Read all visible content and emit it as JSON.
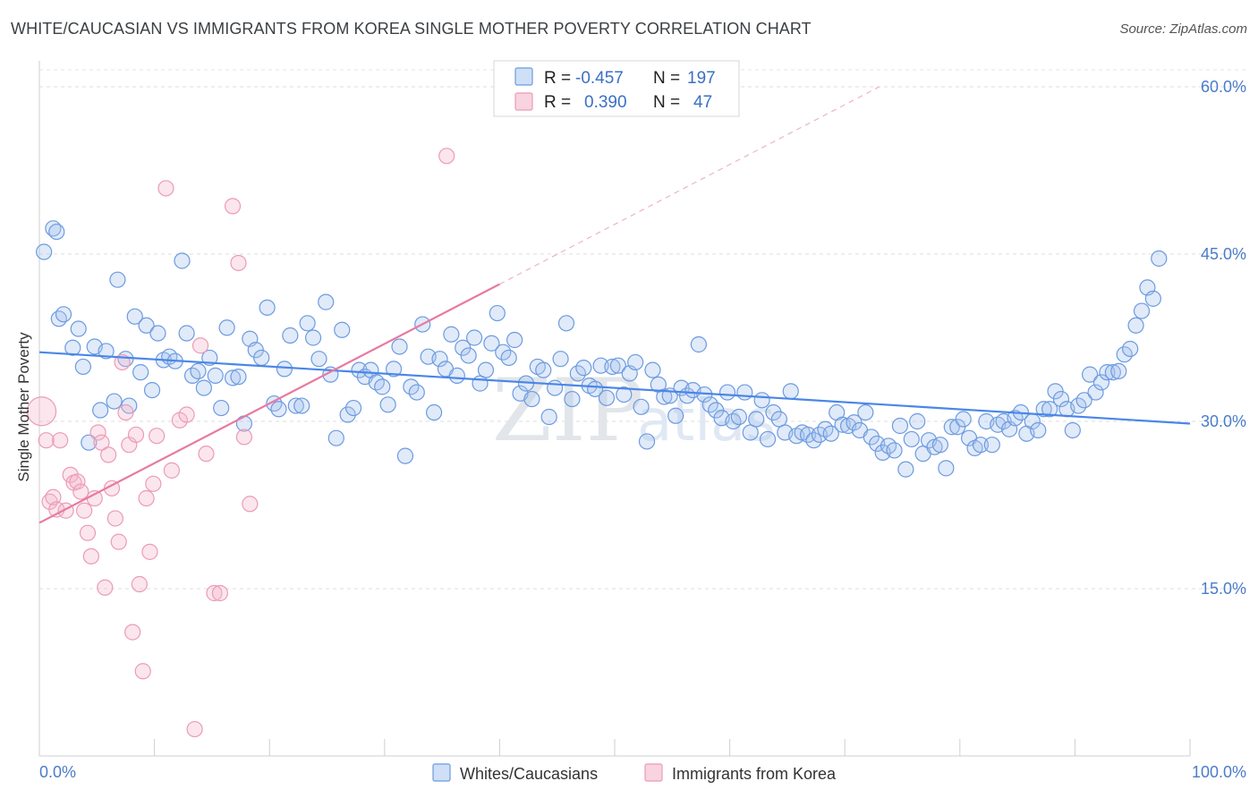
{
  "title": "WHITE/CAUCASIAN VS IMMIGRANTS FROM KOREA SINGLE MOTHER POVERTY CORRELATION CHART",
  "source": "Source: ZipAtlas.com",
  "watermark": {
    "zip": "ZIP",
    "atlas": "atlas"
  },
  "colors": {
    "blue": "#4a86e8",
    "blue_fill": "rgba(165,196,238,0.35)",
    "blue_stroke": "#6c9be0",
    "pink": "#e87aa0",
    "pink_fill": "rgba(244,182,203,0.35)",
    "pink_stroke": "#ec9bb6",
    "tick_label": "#4a7cc9"
  },
  "legend": {
    "rows": [
      {
        "r_label": "R =",
        "r_value": "-0.457",
        "n_label": "N =",
        "n_value": "197"
      },
      {
        "r_label": "R =",
        "r_value": "0.390",
        "n_label": "N =",
        "n_value": "47"
      }
    ]
  },
  "bottom_legend": [
    "Whites/Caucasians",
    "Immigrants from Korea"
  ],
  "chart_data": {
    "type": "scatter",
    "ylabel": "Single Mother Poverty",
    "xlabel": "",
    "xlim": [
      0,
      100
    ],
    "ylim": [
      0,
      60
    ],
    "x_tick_labels": [
      "0.0%",
      "100.0%"
    ],
    "y_ticks": [
      15,
      30,
      45,
      60
    ],
    "y_tick_labels": [
      "15.0%",
      "30.0%",
      "45.0%",
      "60.0%"
    ],
    "grid": "horizontal dashed",
    "series": [
      {
        "name": "Whites/Caucasians",
        "trend": {
          "x0": 0,
          "y0": 36.2,
          "x1": 100,
          "y1": 29.8
        },
        "points": [
          [
            0.4,
            45.2
          ],
          [
            1.2,
            47.3
          ],
          [
            1.5,
            47.0
          ],
          [
            1.7,
            39.2
          ],
          [
            2.1,
            39.6
          ],
          [
            2.9,
            36.6
          ],
          [
            3.4,
            38.3
          ],
          [
            3.8,
            34.9
          ],
          [
            4.3,
            28.1
          ],
          [
            4.8,
            36.7
          ],
          [
            5.3,
            31.0
          ],
          [
            5.8,
            36.3
          ],
          [
            6.5,
            31.8
          ],
          [
            6.8,
            42.7
          ],
          [
            7.5,
            35.6
          ],
          [
            7.8,
            31.4
          ],
          [
            8.3,
            39.4
          ],
          [
            8.8,
            34.4
          ],
          [
            9.3,
            38.6
          ],
          [
            9.8,
            32.8
          ],
          [
            10.3,
            37.9
          ],
          [
            10.8,
            35.5
          ],
          [
            11.3,
            35.8
          ],
          [
            11.8,
            35.4
          ],
          [
            12.4,
            44.4
          ],
          [
            12.8,
            37.9
          ],
          [
            13.3,
            34.1
          ],
          [
            13.8,
            34.5
          ],
          [
            14.3,
            33.0
          ],
          [
            14.8,
            35.7
          ],
          [
            15.3,
            34.1
          ],
          [
            15.8,
            31.2
          ],
          [
            16.3,
            38.4
          ],
          [
            16.8,
            33.9
          ],
          [
            17.3,
            34.0
          ],
          [
            17.8,
            29.8
          ],
          [
            18.3,
            37.4
          ],
          [
            18.8,
            36.4
          ],
          [
            19.3,
            35.7
          ],
          [
            19.8,
            40.2
          ],
          [
            20.4,
            31.6
          ],
          [
            20.8,
            31.1
          ],
          [
            21.3,
            34.7
          ],
          [
            21.8,
            37.7
          ],
          [
            22.3,
            31.4
          ],
          [
            22.8,
            31.4
          ],
          [
            23.3,
            38.8
          ],
          [
            23.8,
            37.5
          ],
          [
            24.3,
            35.6
          ],
          [
            24.9,
            40.7
          ],
          [
            25.3,
            34.2
          ],
          [
            25.8,
            28.5
          ],
          [
            26.3,
            38.2
          ],
          [
            26.8,
            30.6
          ],
          [
            27.3,
            31.2
          ],
          [
            27.8,
            34.6
          ],
          [
            28.3,
            34.0
          ],
          [
            28.8,
            34.6
          ],
          [
            29.3,
            33.5
          ],
          [
            29.8,
            33.1
          ],
          [
            30.3,
            31.5
          ],
          [
            30.8,
            34.7
          ],
          [
            31.3,
            36.7
          ],
          [
            31.8,
            26.9
          ],
          [
            32.3,
            33.1
          ],
          [
            32.8,
            32.6
          ],
          [
            33.3,
            38.7
          ],
          [
            33.8,
            35.8
          ],
          [
            34.3,
            30.8
          ],
          [
            34.8,
            35.6
          ],
          [
            35.3,
            34.7
          ],
          [
            35.8,
            37.8
          ],
          [
            36.3,
            34.1
          ],
          [
            36.8,
            36.6
          ],
          [
            37.3,
            35.9
          ],
          [
            37.8,
            37.5
          ],
          [
            38.3,
            33.4
          ],
          [
            38.8,
            34.6
          ],
          [
            39.3,
            37.0
          ],
          [
            39.8,
            39.7
          ],
          [
            40.3,
            36.2
          ],
          [
            40.8,
            35.7
          ],
          [
            41.3,
            37.3
          ],
          [
            41.8,
            32.5
          ],
          [
            42.3,
            33.4
          ],
          [
            42.8,
            32.0
          ],
          [
            43.3,
            34.9
          ],
          [
            43.8,
            34.6
          ],
          [
            44.3,
            30.4
          ],
          [
            44.8,
            33.0
          ],
          [
            45.3,
            35.6
          ],
          [
            45.8,
            38.8
          ],
          [
            46.3,
            32.0
          ],
          [
            46.8,
            34.3
          ],
          [
            47.3,
            34.8
          ],
          [
            47.8,
            33.2
          ],
          [
            48.3,
            32.9
          ],
          [
            48.8,
            35.0
          ],
          [
            49.3,
            32.1
          ],
          [
            49.8,
            34.9
          ],
          [
            50.3,
            35.0
          ],
          [
            50.8,
            32.4
          ],
          [
            51.3,
            34.3
          ],
          [
            51.8,
            35.3
          ],
          [
            52.3,
            31.3
          ],
          [
            52.8,
            28.2
          ],
          [
            53.3,
            34.6
          ],
          [
            53.8,
            33.3
          ],
          [
            54.3,
            32.2
          ],
          [
            54.8,
            32.3
          ],
          [
            55.3,
            30.5
          ],
          [
            55.8,
            33.0
          ],
          [
            56.3,
            32.3
          ],
          [
            56.8,
            32.8
          ],
          [
            57.3,
            36.9
          ],
          [
            57.8,
            32.4
          ],
          [
            58.3,
            31.5
          ],
          [
            58.8,
            31.0
          ],
          [
            59.3,
            30.3
          ],
          [
            59.8,
            32.6
          ],
          [
            60.3,
            30.0
          ],
          [
            60.8,
            30.4
          ],
          [
            61.3,
            32.6
          ],
          [
            61.8,
            29.0
          ],
          [
            62.3,
            30.2
          ],
          [
            62.8,
            31.9
          ],
          [
            63.3,
            28.4
          ],
          [
            63.8,
            30.8
          ],
          [
            64.3,
            30.2
          ],
          [
            64.8,
            29.0
          ],
          [
            65.3,
            32.7
          ],
          [
            65.8,
            28.7
          ],
          [
            66.3,
            29.0
          ],
          [
            66.8,
            28.8
          ],
          [
            67.3,
            28.3
          ],
          [
            67.8,
            28.8
          ],
          [
            68.3,
            29.3
          ],
          [
            68.8,
            28.9
          ],
          [
            69.3,
            30.8
          ],
          [
            69.8,
            29.7
          ],
          [
            70.3,
            29.6
          ],
          [
            70.8,
            29.9
          ],
          [
            71.3,
            29.2
          ],
          [
            71.8,
            30.8
          ],
          [
            72.3,
            28.6
          ],
          [
            72.8,
            28.0
          ],
          [
            73.3,
            27.2
          ],
          [
            73.8,
            27.8
          ],
          [
            74.3,
            27.4
          ],
          [
            74.8,
            29.6
          ],
          [
            75.3,
            25.7
          ],
          [
            75.8,
            28.4
          ],
          [
            76.3,
            30.0
          ],
          [
            76.8,
            27.1
          ],
          [
            77.3,
            28.3
          ],
          [
            77.8,
            27.7
          ],
          [
            78.3,
            27.9
          ],
          [
            78.8,
            25.8
          ],
          [
            79.3,
            29.5
          ],
          [
            79.8,
            29.5
          ],
          [
            80.3,
            30.2
          ],
          [
            80.8,
            28.5
          ],
          [
            81.3,
            27.6
          ],
          [
            81.8,
            27.9
          ],
          [
            82.3,
            30.0
          ],
          [
            82.8,
            27.9
          ],
          [
            83.3,
            29.7
          ],
          [
            83.8,
            30.0
          ],
          [
            84.3,
            29.3
          ],
          [
            84.8,
            30.3
          ],
          [
            85.3,
            30.8
          ],
          [
            85.8,
            28.9
          ],
          [
            86.3,
            30.0
          ],
          [
            86.8,
            29.2
          ],
          [
            87.3,
            31.1
          ],
          [
            87.8,
            31.1
          ],
          [
            88.3,
            32.7
          ],
          [
            88.8,
            32.0
          ],
          [
            89.3,
            31.1
          ],
          [
            89.8,
            29.2
          ],
          [
            90.3,
            31.4
          ],
          [
            90.8,
            31.9
          ],
          [
            91.3,
            34.2
          ],
          [
            91.8,
            32.6
          ],
          [
            92.3,
            33.5
          ],
          [
            92.8,
            34.4
          ],
          [
            93.3,
            34.4
          ],
          [
            93.8,
            34.5
          ],
          [
            94.3,
            36.0
          ],
          [
            94.8,
            36.5
          ],
          [
            95.3,
            38.6
          ],
          [
            95.8,
            39.9
          ],
          [
            96.3,
            42.0
          ],
          [
            96.8,
            41.0
          ],
          [
            97.3,
            44.6
          ]
        ]
      },
      {
        "name": "Immigrants from Korea",
        "trend": {
          "x0": 0,
          "y0": 20.9,
          "x1": 40.0,
          "y1": 42.3
        },
        "trend_extension": {
          "x0": 40.0,
          "y0": 42.3,
          "x1": 73.0,
          "y1": 60.0
        },
        "points": [
          [
            0.2,
            30.9
          ],
          [
            0.6,
            28.3
          ],
          [
            0.9,
            22.8
          ],
          [
            1.2,
            23.2
          ],
          [
            1.5,
            22.1
          ],
          [
            1.8,
            28.3
          ],
          [
            2.3,
            22.0
          ],
          [
            2.7,
            25.2
          ],
          [
            3.0,
            24.5
          ],
          [
            3.3,
            24.6
          ],
          [
            3.6,
            23.7
          ],
          [
            3.9,
            22.0
          ],
          [
            4.2,
            20.0
          ],
          [
            4.5,
            17.9
          ],
          [
            4.8,
            23.1
          ],
          [
            5.1,
            29.0
          ],
          [
            5.4,
            28.1
          ],
          [
            5.7,
            15.1
          ],
          [
            6.0,
            27.0
          ],
          [
            6.3,
            24.0
          ],
          [
            6.6,
            21.3
          ],
          [
            6.9,
            19.2
          ],
          [
            7.2,
            35.3
          ],
          [
            7.5,
            30.8
          ],
          [
            7.8,
            27.9
          ],
          [
            8.1,
            11.1
          ],
          [
            8.4,
            28.8
          ],
          [
            8.7,
            15.4
          ],
          [
            9.0,
            7.6
          ],
          [
            9.3,
            23.1
          ],
          [
            9.6,
            18.3
          ],
          [
            9.9,
            24.4
          ],
          [
            10.2,
            28.7
          ],
          [
            11.0,
            50.9
          ],
          [
            11.5,
            25.6
          ],
          [
            12.2,
            30.1
          ],
          [
            12.8,
            30.6
          ],
          [
            13.5,
            2.4
          ],
          [
            14.0,
            36.8
          ],
          [
            14.5,
            27.1
          ],
          [
            15.2,
            14.6
          ],
          [
            15.7,
            14.6
          ],
          [
            16.8,
            49.3
          ],
          [
            17.3,
            44.2
          ],
          [
            17.8,
            28.6
          ],
          [
            18.3,
            22.6
          ],
          [
            35.4,
            53.8
          ]
        ]
      }
    ]
  }
}
